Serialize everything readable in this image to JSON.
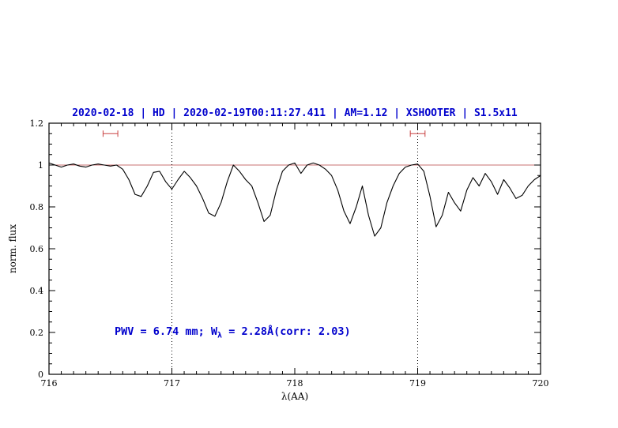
{
  "title": {
    "text": "2020-02-18 | HD | 2020-02-19T00:11:27.411 | AM=1.12 | XSHOOTER | S1.5x11",
    "color": "#0000cd"
  },
  "annotation": {
    "prefix": "PWV = 6.74 mm; W",
    "sub": "λ",
    "suffix": " = 2.28Å(corr: 2.03)",
    "color": "#0000cd"
  },
  "chart_data": {
    "type": "line",
    "title": "2020-02-18 | HD | 2020-02-19T00:11:27.411 | AM=1.12 | XSHOOTER | S1.5x11",
    "xlabel": "λ(AA)",
    "ylabel": "norm. flux",
    "xlim": [
      716,
      720
    ],
    "ylim": [
      0,
      1.2
    ],
    "x_ticks": [
      716,
      717,
      718,
      719,
      720
    ],
    "x_tick_labels": [
      "716",
      "717",
      "718",
      "719",
      "720"
    ],
    "y_ticks": [
      0,
      0.2,
      0.4,
      0.6,
      0.8,
      1,
      1.2
    ],
    "y_tick_labels": [
      "0",
      "0.2",
      "0.4",
      "0.6",
      "0.8",
      "1",
      "1.2"
    ],
    "x_minor_step": 0.1,
    "y_minor_step": 0.05,
    "grid": false,
    "legend": "none",
    "reference_line": {
      "y": 1.0,
      "color": "#c87070"
    },
    "dotted_vlines": {
      "x": [
        717,
        719
      ],
      "color": "#000000"
    },
    "interval_markers": [
      {
        "x_center": 716.5,
        "half_width": 0.06,
        "y": 1.15,
        "color": "#c84040"
      },
      {
        "x_center": 719.0,
        "half_width": 0.06,
        "y": 1.15,
        "color": "#c84040"
      }
    ],
    "series": [
      {
        "name": "telluric-spectrum",
        "color": "#000000",
        "x_start": 716.0,
        "x_step": 0.05,
        "values": [
          1.01,
          1.0,
          0.99,
          1.0,
          1.005,
          0.995,
          0.99,
          1.0,
          1.005,
          1.0,
          0.995,
          1.0,
          0.98,
          0.93,
          0.86,
          0.85,
          0.9,
          0.965,
          0.97,
          0.92,
          0.885,
          0.93,
          0.97,
          0.94,
          0.9,
          0.84,
          0.77,
          0.755,
          0.82,
          0.92,
          1.0,
          0.97,
          0.93,
          0.9,
          0.82,
          0.73,
          0.76,
          0.88,
          0.97,
          1.0,
          1.01,
          0.96,
          1.0,
          1.01,
          1.0,
          0.98,
          0.95,
          0.88,
          0.78,
          0.72,
          0.8,
          0.9,
          0.76,
          0.66,
          0.7,
          0.82,
          0.9,
          0.96,
          0.99,
          1.0,
          1.005,
          0.97,
          0.85,
          0.705,
          0.76,
          0.87,
          0.82,
          0.78,
          0.88,
          0.94,
          0.9,
          0.96,
          0.92,
          0.86,
          0.93,
          0.89,
          0.84,
          0.855,
          0.9,
          0.93,
          0.95
        ]
      }
    ]
  }
}
